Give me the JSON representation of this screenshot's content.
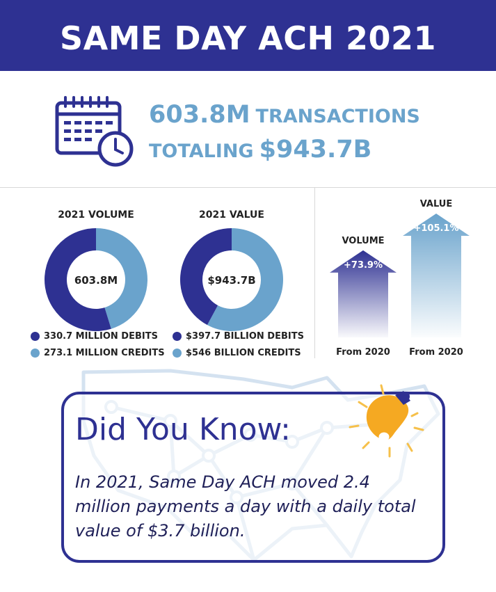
{
  "header": {
    "title": "SAME DAY ACH 2021"
  },
  "summary": {
    "transactions_value": "603.8M",
    "transactions_word": "TRANSACTIONS",
    "totaling_word": "TOTALING",
    "total_value": "$943.7B"
  },
  "colors": {
    "navy": "#2e3192",
    "light_blue": "#6aa3cc"
  },
  "icons": [
    "calendar-clock-icon",
    "light-bulb-icon",
    "us-map-network-icon"
  ],
  "chart_data": [
    {
      "type": "pie",
      "title": "2021 VOLUME",
      "center_label": "603.8M",
      "labels": [
        "330.7 MILLION DEBITS",
        "273.1 MILLION CREDITS"
      ],
      "values": [
        330.7,
        273.1
      ],
      "colors": [
        "#2e3192",
        "#6aa3cc"
      ]
    },
    {
      "type": "pie",
      "title": "2021 VALUE",
      "center_label": "$943.7B",
      "labels": [
        "$397.7 BILLION DEBITS",
        "$546 BILLION CREDITS"
      ],
      "values": [
        397.7,
        546
      ],
      "colors": [
        "#2e3192",
        "#6aa3cc"
      ]
    },
    {
      "type": "bar",
      "categories": [
        "VOLUME",
        "VALUE"
      ],
      "values": [
        73.9,
        105.1
      ],
      "value_labels": [
        "+73.9%",
        "+105.1%"
      ],
      "xlabels": [
        "From 2020",
        "From 2020"
      ],
      "colors": [
        "#2e3192",
        "#6aa3cc"
      ]
    }
  ],
  "did_you_know": {
    "title": "Did You Know:",
    "text": "In 2021, Same Day ACH moved 2.4 million payments a day with a daily total value of $3.7 billion."
  }
}
